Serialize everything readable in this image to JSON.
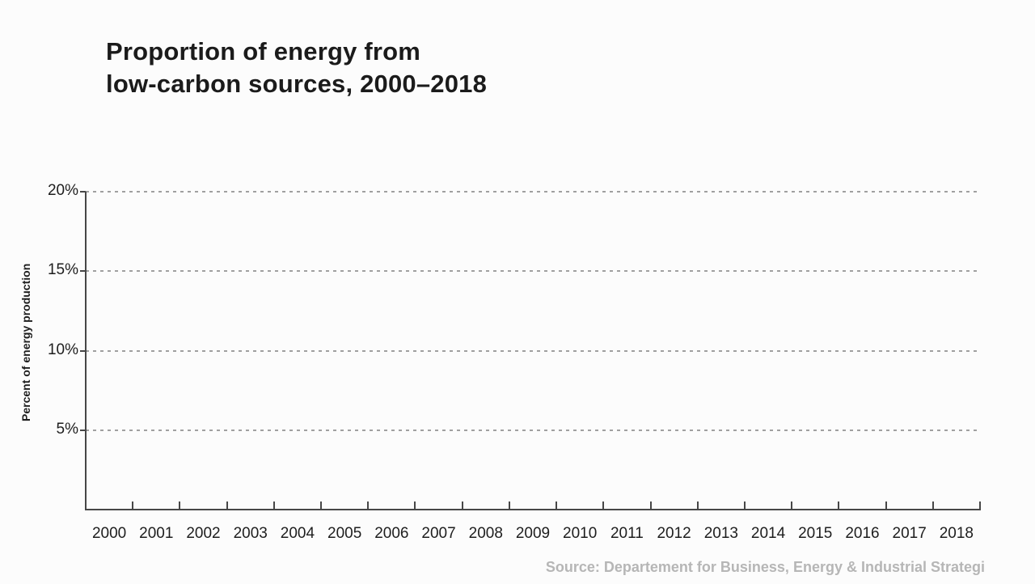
{
  "chart_data": {
    "type": "line",
    "title": "Proportion of energy from low-carbon sources, 2000–2018",
    "title_lines": [
      "Proportion of energy from",
      "low-carbon sources, 2000–2018"
    ],
    "ylabel": "Percent of energy production",
    "xlabel": "",
    "categories": [
      "2000",
      "2001",
      "2002",
      "2003",
      "2004",
      "2005",
      "2006",
      "2007",
      "2008",
      "2009",
      "2010",
      "2011",
      "2012",
      "2013",
      "2014",
      "2015",
      "2016",
      "2017",
      "2018"
    ],
    "y_ticks": [
      {
        "label": "20%",
        "value": 20
      },
      {
        "label": "15%",
        "value": 15
      },
      {
        "label": "10%",
        "value": 10
      },
      {
        "label": "5%",
        "value": 5
      }
    ],
    "ylim": [
      0,
      20
    ],
    "series": [],
    "grid": "horizontal-dashed",
    "legend": "none",
    "source": "Source: Departement for Business, Energy & Industrial Strategi"
  },
  "colors": {
    "background": "#fcfcfc",
    "title": "#1b1b1b",
    "axis_line": "#474747",
    "gridline": "#a0a0a0",
    "tick_text": "#1e1e1e",
    "source_text": "#b6b6b6"
  }
}
